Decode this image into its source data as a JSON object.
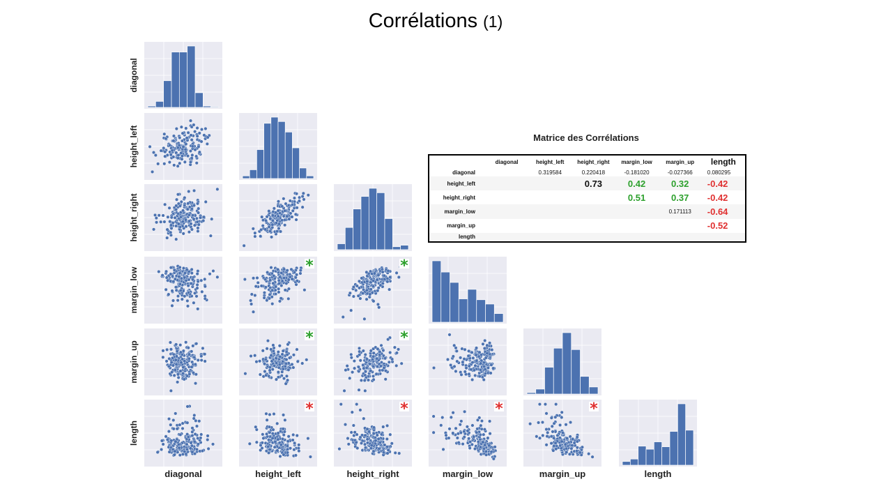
{
  "title": {
    "main": "Corrélations",
    "suffix": "(1)"
  },
  "colors": {
    "bar": "#4c72b0",
    "panel_bg": "#eaeaf2",
    "grid": "#ffffff",
    "positive_marker": "#2ca02c",
    "negative_marker": "#e03030"
  },
  "chart_data": {
    "type": "scatter",
    "variables": [
      "diagonal",
      "height_left",
      "height_right",
      "margin_low",
      "margin_up",
      "length"
    ],
    "layout": "lower-triangle pair plot with histograms on the diagonal",
    "grid": true,
    "histograms": {
      "diagonal": [
        2,
        9,
        40,
        83,
        83,
        92,
        22,
        2,
        1
      ],
      "height_left": [
        3,
        10,
        33,
        63,
        70,
        65,
        53,
        35,
        12,
        3
      ],
      "height_right": [
        8,
        30,
        55,
        72,
        83,
        77,
        42,
        4,
        6
      ],
      "margin_low": [
        71,
        58,
        46,
        27,
        38,
        26,
        21,
        10
      ],
      "margin_up": [
        2,
        7,
        38,
        65,
        87,
        63,
        25,
        10
      ],
      "length": [
        6,
        10,
        31,
        26,
        38,
        30,
        55,
        100,
        57
      ]
    },
    "correlation_markers": [
      {
        "row": "margin_low",
        "col": "height_left",
        "symbol": "*",
        "sign": "positive"
      },
      {
        "row": "margin_low",
        "col": "height_right",
        "symbol": "*",
        "sign": "positive"
      },
      {
        "row": "margin_up",
        "col": "height_left",
        "symbol": "*",
        "sign": "positive"
      },
      {
        "row": "margin_up",
        "col": "height_right",
        "symbol": "*",
        "sign": "positive"
      },
      {
        "row": "length",
        "col": "height_left",
        "symbol": "*",
        "sign": "negative"
      },
      {
        "row": "length",
        "col": "height_right",
        "symbol": "*",
        "sign": "negative"
      },
      {
        "row": "length",
        "col": "margin_low",
        "symbol": "*",
        "sign": "negative"
      },
      {
        "row": "length",
        "col": "margin_up",
        "symbol": "*",
        "sign": "negative"
      }
    ]
  },
  "matrix": {
    "title": "Matrice des Corrélations",
    "columns": [
      "diagonal",
      "height_left",
      "height_right",
      "margin_low",
      "margin_up",
      "length"
    ],
    "rows": [
      {
        "name": "diagonal",
        "cells": [
          "",
          "0.319584",
          "0.220418",
          "-0.181020",
          "-0.027366",
          "0.080295"
        ]
      },
      {
        "name": "height_left",
        "cells": [
          "",
          "",
          "0.73",
          "0.42",
          "0.32",
          "-0.42"
        ]
      },
      {
        "name": "height_right",
        "cells": [
          "",
          "",
          "",
          "0.51",
          "0.37",
          "-0.42"
        ]
      },
      {
        "name": "margin_low",
        "cells": [
          "",
          "",
          "",
          "",
          "0.171113",
          "-0.64"
        ]
      },
      {
        "name": "margin_up",
        "cells": [
          "",
          "",
          "",
          "",
          "",
          "-0.52"
        ]
      },
      {
        "name": "length",
        "cells": [
          "",
          "",
          "",
          "",
          "",
          ""
        ]
      }
    ]
  }
}
